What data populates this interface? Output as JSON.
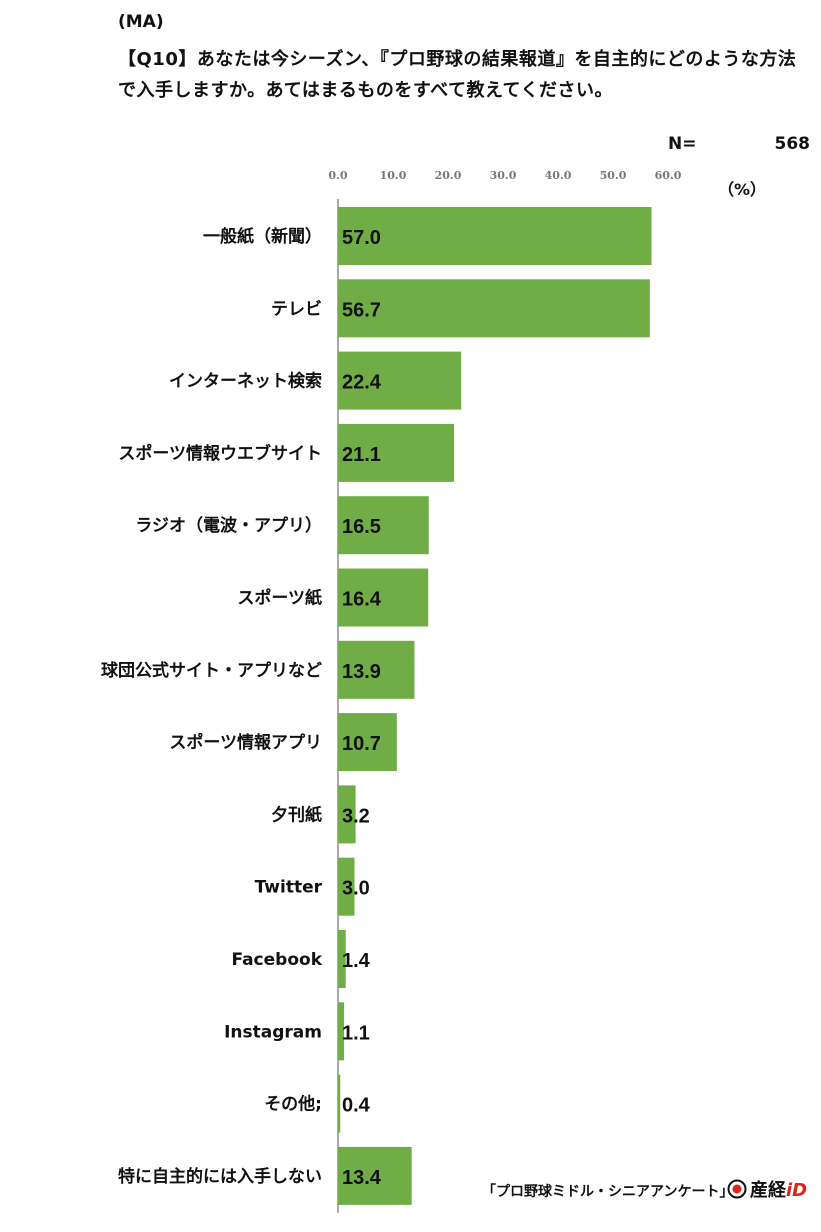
{
  "header": {
    "ma": "(MA)",
    "question": "【Q10】あなたは今シーズン、『プロ野球の結果報道』を自主的にどのような方法で入手しますか。あてはまるものをすべて教えてください。",
    "n_label": "N=",
    "n_value": "568",
    "unit": "（%）"
  },
  "footer": {
    "source": "「プロ野球ミドル・シニアアンケート」",
    "brand": "産経",
    "brand_suffix": "iD"
  },
  "colors": {
    "bar": "#70ad47",
    "axis": "#555555",
    "text": "#111111"
  },
  "chart_data": {
    "type": "bar",
    "orientation": "horizontal",
    "xlim": [
      0,
      60
    ],
    "ticks": [
      "0.0",
      "10.0",
      "20.0",
      "30.0",
      "40.0",
      "50.0",
      "60.0"
    ],
    "tick_values": [
      0,
      10,
      20,
      30,
      40,
      50,
      60
    ],
    "categories": [
      "一般紙（新聞）",
      "テレビ",
      "インターネット検索",
      "スポーツ情報ウエブサイト",
      "ラジオ（電波・アプリ）",
      "スポーツ紙",
      "球団公式サイト・アプリなど",
      "スポーツ情報アプリ",
      "夕刊紙",
      "Twitter",
      "Facebook",
      "Instagram",
      "その他;",
      "特に自主的には入手しない"
    ],
    "values": [
      57.0,
      56.7,
      22.4,
      21.1,
      16.5,
      16.4,
      13.9,
      10.7,
      3.2,
      3.0,
      1.4,
      1.1,
      0.4,
      13.4
    ],
    "value_labels": [
      "57.0",
      "56.7",
      "22.4",
      "21.1",
      "16.5",
      "16.4",
      "13.9",
      "10.7",
      "3.2",
      "3.0",
      "1.4",
      "1.1",
      "0.4",
      "13.4"
    ]
  }
}
